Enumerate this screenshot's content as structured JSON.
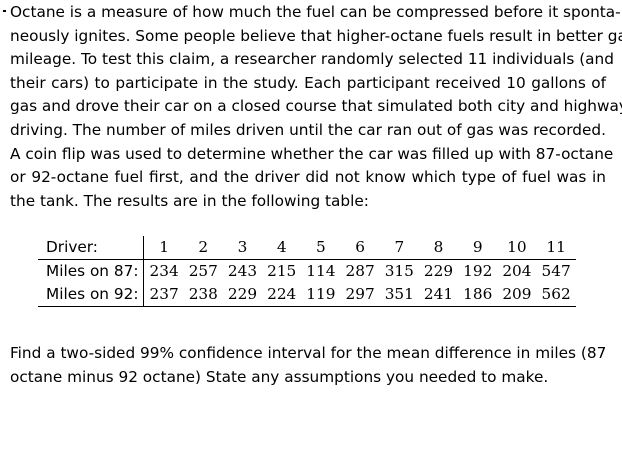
{
  "problem": {
    "lines": [
      "Octane is a measure of how much the fuel can be compressed before it sponta-",
      "neously ignites. Some people believe that higher-octane fuels result in better gas",
      "mileage. To test this claim, a researcher randomly selected 11 individuals (and",
      "their cars) to participate in the study. Each participant received 10 gallons of",
      "gas and drove their car on a closed course that simulated both city and highway",
      "driving. The number of miles driven until the car ran out of gas was recorded.",
      "A coin flip was used to determine whether the car was filled up with 87-octane",
      "or 92-octane fuel first, and the driver did not know which type of fuel was in",
      "the tank. The results are in the following table:"
    ]
  },
  "table": {
    "header_label": "Driver:",
    "drivers": [
      "1",
      "2",
      "3",
      "4",
      "5",
      "6",
      "7",
      "8",
      "9",
      "10",
      "11"
    ],
    "rows": [
      {
        "label": "Miles on 87:",
        "values": [
          "234",
          "257",
          "243",
          "215",
          "114",
          "287",
          "315",
          "229",
          "192",
          "204",
          "547"
        ]
      },
      {
        "label": "Miles on 92:",
        "values": [
          "237",
          "238",
          "229",
          "224",
          "119",
          "297",
          "351",
          "241",
          "186",
          "209",
          "562"
        ]
      }
    ]
  },
  "question": {
    "lines": [
      "Find a two-sided 99% confidence interval for the mean difference in miles (87",
      "octane minus 92 octane) State any assumptions you needed to make."
    ]
  }
}
